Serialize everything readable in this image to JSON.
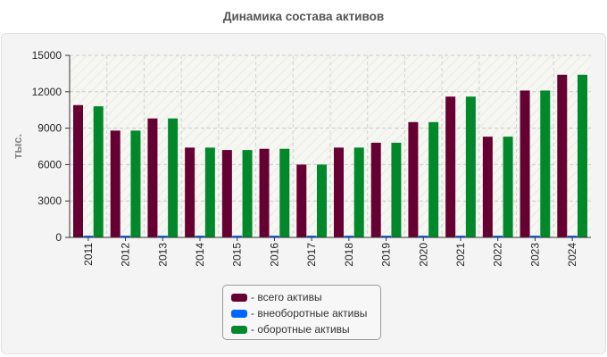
{
  "chart_data": {
    "type": "bar",
    "title": "Динамика состава активов",
    "xlabel": "",
    "ylabel": "тыс.",
    "ylim": [
      0,
      15000
    ],
    "yticks": [
      0,
      3000,
      6000,
      9000,
      12000,
      15000
    ],
    "grid": true,
    "legend_position": "bottom-center",
    "legend_prefix": "- ",
    "categories": [
      "2011",
      "2012",
      "2013",
      "2014",
      "2015",
      "2016",
      "2017",
      "2018",
      "2019",
      "2020",
      "2021",
      "2022",
      "2023",
      "2024"
    ],
    "series": [
      {
        "name": "всего активы",
        "color": "#660033",
        "values": [
          10900,
          8800,
          9800,
          7400,
          7200,
          7300,
          6000,
          7400,
          7800,
          9500,
          11600,
          8300,
          12100,
          13400
        ]
      },
      {
        "name": "внеоборотные активы",
        "color": "#0066ff",
        "values": [
          40,
          40,
          40,
          40,
          40,
          40,
          40,
          40,
          40,
          40,
          40,
          40,
          40,
          40
        ]
      },
      {
        "name": "оборотные активы",
        "color": "#00882b",
        "values": [
          10800,
          8800,
          9800,
          7400,
          7200,
          7300,
          6000,
          7400,
          7800,
          9500,
          11600,
          8300,
          12100,
          13400
        ]
      }
    ]
  }
}
